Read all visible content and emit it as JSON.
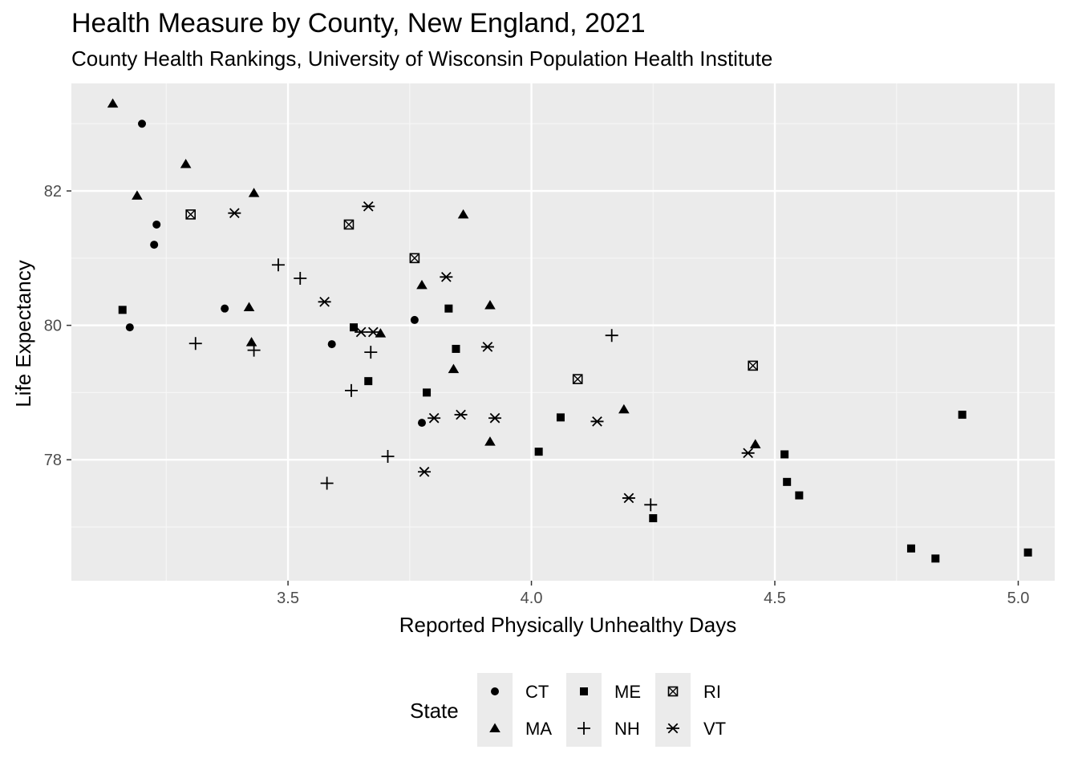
{
  "chart_data": {
    "type": "scatter",
    "title": "Health Measure by County, New England, 2021",
    "subtitle": "County Health Rankings, University of Wisconsin Population Health Institute",
    "xlabel": "Reported Physically Unhealthy Days",
    "ylabel": "Life Expectancy",
    "xlim": [
      3.055,
      5.075
    ],
    "ylim": [
      76.2,
      83.6
    ],
    "x_ticks": [
      3.5,
      4.0,
      4.5,
      5.0
    ],
    "x_tick_labels": [
      "3.5",
      "4.0",
      "4.5",
      "5.0"
    ],
    "y_ticks": [
      78,
      80,
      82
    ],
    "y_tick_labels": [
      "78",
      "80",
      "82"
    ],
    "grid": true,
    "legend_position": "bottom",
    "legend_title": "State",
    "series": [
      {
        "name": "CT",
        "shape": "circle",
        "points": [
          [
            3.2,
            83.0
          ],
          [
            3.23,
            81.5
          ],
          [
            3.225,
            81.2
          ],
          [
            3.175,
            79.97
          ],
          [
            3.37,
            80.25
          ],
          [
            3.59,
            79.72
          ],
          [
            3.76,
            80.08
          ],
          [
            3.775,
            78.55
          ]
        ]
      },
      {
        "name": "MA",
        "shape": "triangle",
        "points": [
          [
            3.14,
            83.3
          ],
          [
            3.29,
            82.4
          ],
          [
            3.19,
            81.93
          ],
          [
            3.43,
            81.97
          ],
          [
            3.42,
            80.27
          ],
          [
            3.425,
            79.75
          ],
          [
            3.69,
            79.88
          ],
          [
            3.86,
            81.65
          ],
          [
            3.775,
            80.6
          ],
          [
            3.915,
            80.3
          ],
          [
            3.84,
            79.35
          ],
          [
            3.915,
            78.27
          ],
          [
            4.19,
            78.75
          ],
          [
            4.46,
            78.23
          ]
        ]
      },
      {
        "name": "ME",
        "shape": "square",
        "points": [
          [
            3.16,
            80.23
          ],
          [
            3.635,
            79.97
          ],
          [
            3.665,
            79.17
          ],
          [
            3.83,
            80.25
          ],
          [
            3.845,
            79.65
          ],
          [
            3.785,
            79.0
          ],
          [
            4.015,
            78.12
          ],
          [
            4.06,
            78.63
          ],
          [
            4.25,
            77.13
          ],
          [
            4.52,
            78.08
          ],
          [
            4.525,
            77.67
          ],
          [
            4.55,
            77.47
          ],
          [
            4.78,
            76.68
          ],
          [
            4.83,
            76.53
          ],
          [
            4.885,
            78.67
          ],
          [
            5.02,
            76.62
          ]
        ]
      },
      {
        "name": "NH",
        "shape": "plus",
        "points": [
          [
            3.31,
            79.73
          ],
          [
            3.43,
            79.63
          ],
          [
            3.48,
            80.9
          ],
          [
            3.525,
            80.7
          ],
          [
            3.58,
            77.65
          ],
          [
            3.63,
            79.03
          ],
          [
            3.67,
            79.6
          ],
          [
            3.705,
            78.05
          ],
          [
            4.165,
            79.85
          ],
          [
            4.245,
            77.33
          ]
        ]
      },
      {
        "name": "RI",
        "shape": "boxx",
        "points": [
          [
            3.3,
            81.65
          ],
          [
            3.625,
            81.5
          ],
          [
            3.76,
            81.0
          ],
          [
            4.095,
            79.2
          ],
          [
            4.455,
            79.4
          ]
        ]
      },
      {
        "name": "VT",
        "shape": "asterisk",
        "points": [
          [
            3.39,
            81.67
          ],
          [
            3.665,
            81.77
          ],
          [
            3.575,
            80.35
          ],
          [
            3.825,
            80.72
          ],
          [
            3.65,
            79.9
          ],
          [
            3.675,
            79.9
          ],
          [
            3.91,
            79.68
          ],
          [
            3.8,
            78.62
          ],
          [
            3.855,
            78.67
          ],
          [
            3.925,
            78.62
          ],
          [
            3.78,
            77.82
          ],
          [
            4.135,
            78.57
          ],
          [
            4.2,
            77.43
          ],
          [
            4.445,
            78.1
          ]
        ]
      }
    ]
  }
}
